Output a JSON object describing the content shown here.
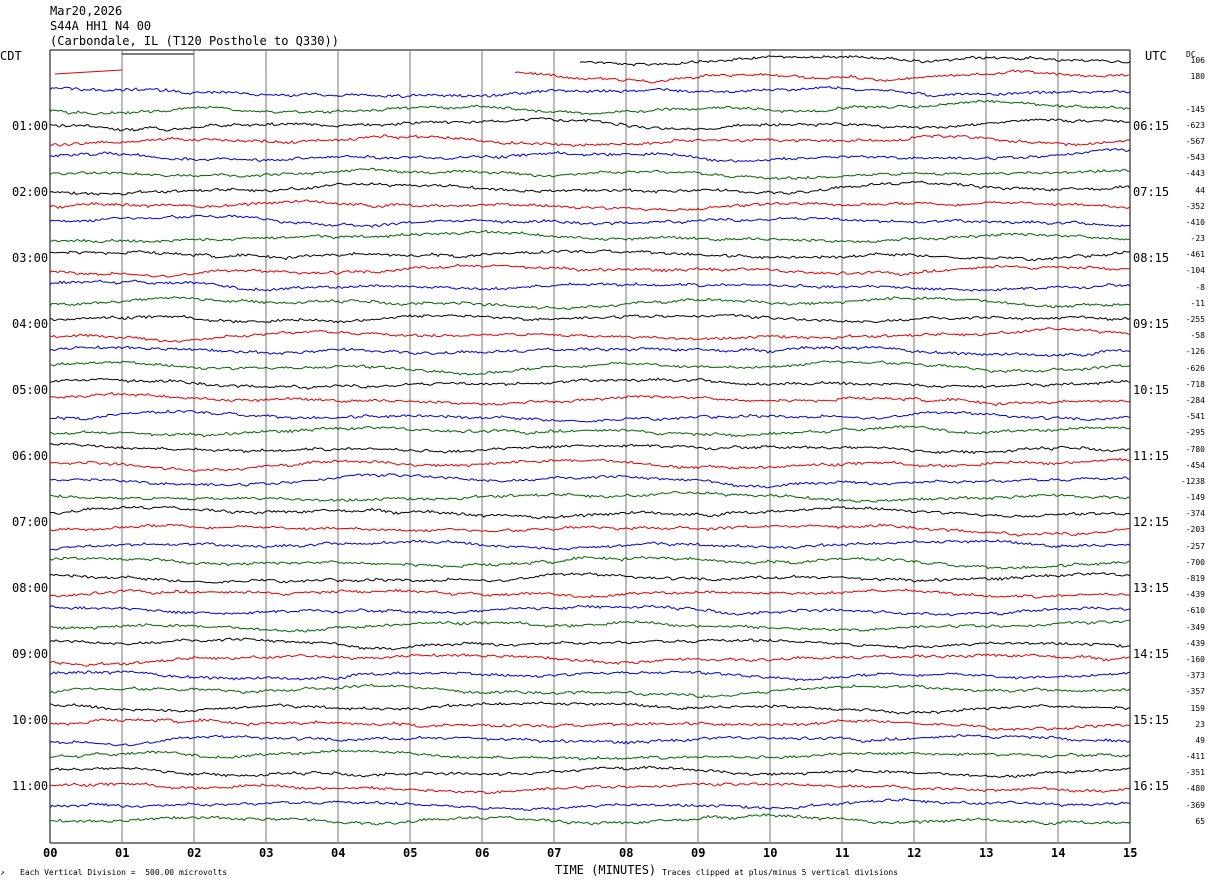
{
  "header": {
    "date": "Mar20,2026",
    "station": "S44A HH1 N4 00",
    "location": "(Carbondale, IL (T120 Posthole to Q330))"
  },
  "left_axis_label": "CDT",
  "right_axis_label": "UTC",
  "dc_label": "DC",
  "footer": {
    "scale_note": "Each Vertical Division =  500.00 microvolts",
    "clip_note": "Traces clipped at plus/minus 5 vertical divisions",
    "corner_mark": "↗"
  },
  "chart_data": {
    "type": "line",
    "title": "",
    "xlabel": "TIME (MINUTES)",
    "ylabel": "",
    "xlim": [
      0,
      15
    ],
    "x_ticks": [
      "00",
      "01",
      "02",
      "03",
      "04",
      "05",
      "06",
      "07",
      "08",
      "09",
      "10",
      "11",
      "12",
      "13",
      "14",
      "15"
    ],
    "grid": true,
    "cdt_hour_labels": [
      "01:00",
      "02:00",
      "03:00",
      "04:00",
      "05:00",
      "06:00",
      "07:00",
      "08:00",
      "09:00",
      "10:00",
      "11:00"
    ],
    "utc_hour_labels": [
      "06:15",
      "07:15",
      "08:15",
      "09:15",
      "10:15",
      "11:15",
      "12:15",
      "13:15",
      "14:15",
      "15:15",
      "16:15"
    ],
    "trace_colors": [
      "#000000",
      "#dd0000",
      "#0000cc",
      "#006600"
    ],
    "trace_dc_offsets": [
      "106",
      "180",
      "",
      "-145",
      "-623",
      "-567",
      "-543",
      "-443",
      "44",
      "-352",
      "-410",
      "-23",
      "-461",
      "-104",
      "-8",
      "-11",
      "-255",
      "-58",
      "-126",
      "-626",
      "-718",
      "-284",
      "-541",
      "-295",
      "-780",
      "-454",
      "-1238",
      "-149",
      "-374",
      "-203",
      "-257",
      "-700",
      "-819",
      "-439",
      "-610",
      "-349",
      "-439",
      "-160",
      "-373",
      "-357",
      "159",
      "23",
      "49",
      "-411",
      "-351",
      "-480",
      "-369",
      "65"
    ]
  }
}
